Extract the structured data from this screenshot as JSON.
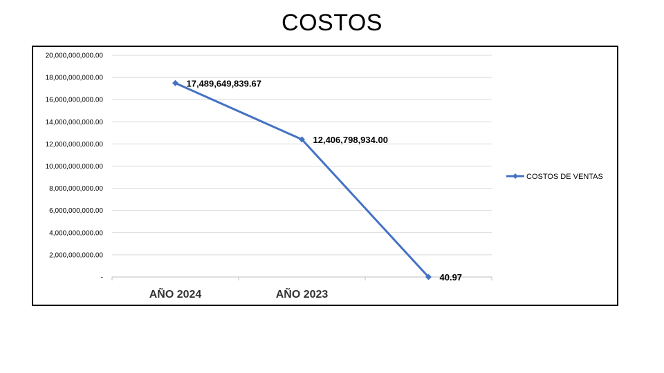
{
  "slide": {
    "title": "COSTOS"
  },
  "chart_data": {
    "type": "line",
    "title": "",
    "xlabel": "",
    "ylabel": "",
    "categories": [
      "AÑO 2024",
      "AÑO 2023",
      ""
    ],
    "series": [
      {
        "name": "COSTOS DE VENTAS",
        "color": "#4472C4",
        "values": [
          17489649839.67,
          12406798934.0,
          40.97
        ],
        "data_labels": [
          "17,489,649,839.67",
          "12,406,798,934.00",
          "40.97"
        ]
      }
    ],
    "ylim": [
      0,
      20000000000
    ],
    "yticks": [
      0,
      2000000000,
      4000000000,
      6000000000,
      8000000000,
      10000000000,
      12000000000,
      14000000000,
      16000000000,
      18000000000,
      20000000000
    ],
    "ytick_labels": [
      "-",
      "2,000,000,000.00",
      "4,000,000,000.00",
      "6,000,000,000.00",
      "8,000,000,000.00",
      "10,000,000,000.00",
      "12,000,000,000.00",
      "14,000,000,000.00",
      "16,000,000,000.00",
      "18,000,000,000.00",
      "20,000,000,000.00"
    ],
    "grid": true,
    "legend_position": "right",
    "marker": "diamond"
  }
}
